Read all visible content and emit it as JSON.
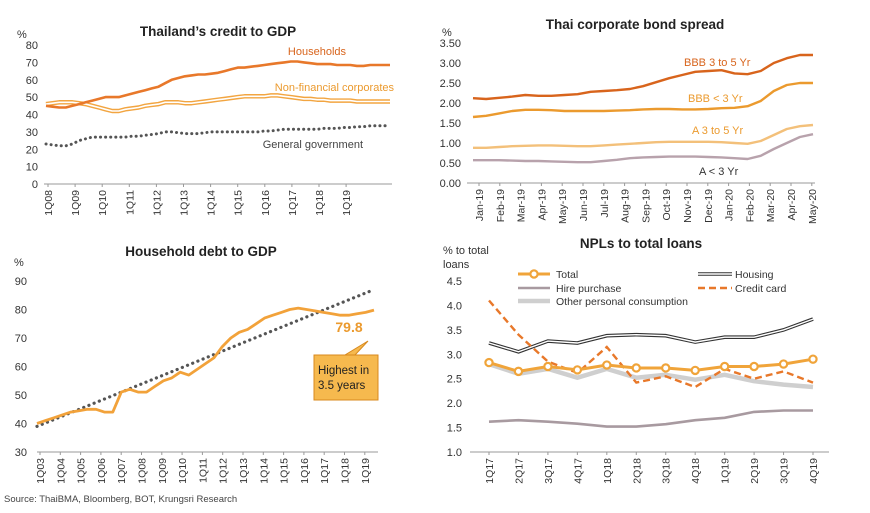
{
  "source": "Source: ThaiBMA, Bloomberg, BOT, Krungsri Research",
  "chart_data": [
    {
      "type": "line",
      "title": "Thailand’s credit to GDP",
      "unit": "%",
      "x_ticks": [
        "1Q08",
        "1Q09",
        "1Q10",
        "1Q11",
        "1Q12",
        "1Q13",
        "1Q14",
        "1Q15",
        "1Q16",
        "1Q17",
        "1Q18",
        "1Q19"
      ],
      "ylim": [
        0,
        80
      ],
      "y_ticks": [
        "0",
        "10",
        "20",
        "30",
        "40",
        "50",
        "60",
        "70",
        "80"
      ],
      "series": [
        {
          "name": "Households",
          "color": "#e8782a",
          "style": "solid",
          "values": [
            45,
            44.5,
            44,
            44,
            45,
            46,
            47,
            48,
            49,
            50,
            50,
            50,
            51,
            52,
            53,
            54,
            55,
            56,
            58,
            60,
            61,
            62,
            62.5,
            63,
            63,
            63.5,
            64,
            65,
            66,
            67,
            67,
            67.5,
            68,
            68.5,
            69,
            69.5,
            70,
            70.5,
            70.5,
            70,
            69.5,
            69,
            69,
            69,
            68.5,
            68.5,
            68.5,
            68,
            68,
            68.5,
            68.5,
            68.5,
            68.5
          ]
        },
        {
          "name": "Non-financial corporates",
          "color": "#f2a541",
          "style": "double",
          "values": [
            46,
            46.5,
            47,
            47,
            47,
            46.5,
            46,
            45,
            44,
            43,
            42,
            42,
            43,
            43.5,
            44,
            45,
            45.5,
            46,
            47,
            47,
            47,
            46.5,
            46.5,
            47,
            47.5,
            48,
            48.5,
            49,
            49.5,
            50,
            50.5,
            50.5,
            50.5,
            50.5,
            51,
            51,
            50.5,
            50,
            49.5,
            49,
            49,
            48.5,
            48.5,
            48,
            48,
            48,
            48,
            47.5,
            47.5,
            47.5,
            47.5,
            47.5,
            47.5
          ]
        },
        {
          "name": "General government",
          "color": "#555555",
          "style": "dotted",
          "values": [
            23,
            22.5,
            22,
            22,
            23,
            25,
            26,
            27,
            27,
            27,
            27,
            27,
            27,
            27.5,
            27.5,
            28,
            28.5,
            29,
            30,
            30,
            29.5,
            29,
            29,
            29,
            29.5,
            30,
            30,
            30,
            30,
            30,
            30,
            30,
            30,
            30.5,
            30.5,
            31,
            31.5,
            31.5,
            31.5,
            31.5,
            31.5,
            31.5,
            32,
            32,
            32,
            32.5,
            32.5,
            33,
            33,
            33.5,
            33.5,
            33.5,
            33.5
          ]
        }
      ]
    },
    {
      "type": "line",
      "title": "Thai corporate bond spread",
      "unit": "%",
      "x_ticks": [
        "Jan-19",
        "Feb-19",
        "Mar-19",
        "Apr-19",
        "May-19",
        "Jun-19",
        "Jul-19",
        "Aug-19",
        "Sep-19",
        "Oct-19",
        "Nov-19",
        "Dec-19",
        "Jan-20",
        "Feb-20",
        "Mar-20",
        "Apr-20",
        "May-20"
      ],
      "ylim": [
        0,
        3.5
      ],
      "y_ticks": [
        "0.00",
        "0.50",
        "1.00",
        "1.50",
        "2.00",
        "2.50",
        "3.00",
        "3.50"
      ],
      "series": [
        {
          "name": "BBB 3 to 5 Yr",
          "color": "#d8641c",
          "values": [
            2.12,
            2.1,
            2.13,
            2.16,
            2.2,
            2.18,
            2.18,
            2.2,
            2.22,
            2.28,
            2.3,
            2.32,
            2.35,
            2.42,
            2.52,
            2.62,
            2.7,
            2.78,
            2.8,
            2.82,
            2.74,
            2.72,
            2.8,
            3.0,
            3.12,
            3.2,
            3.2
          ]
        },
        {
          "name": "BBB < 3 Yr",
          "color": "#eb9a2e",
          "values": [
            1.65,
            1.68,
            1.74,
            1.8,
            1.83,
            1.83,
            1.82,
            1.8,
            1.8,
            1.8,
            1.8,
            1.81,
            1.82,
            1.84,
            1.85,
            1.85,
            1.84,
            1.84,
            1.85,
            1.87,
            1.88,
            1.92,
            2.05,
            2.3,
            2.45,
            2.5,
            2.5
          ]
        },
        {
          "name": "A 3 to 5 Yr",
          "color": "#f3c07a",
          "values": [
            0.88,
            0.88,
            0.9,
            0.92,
            0.93,
            0.94,
            0.94,
            0.93,
            0.92,
            0.92,
            0.94,
            0.96,
            0.98,
            1.0,
            1.02,
            1.03,
            1.03,
            1.03,
            1.03,
            1.02,
            1.0,
            0.98,
            1.05,
            1.2,
            1.35,
            1.42,
            1.45
          ]
        },
        {
          "name": "A < 3 Yr",
          "color": "#b8a2ac",
          "values": [
            0.57,
            0.57,
            0.57,
            0.56,
            0.55,
            0.55,
            0.54,
            0.53,
            0.52,
            0.52,
            0.55,
            0.58,
            0.62,
            0.64,
            0.65,
            0.66,
            0.66,
            0.66,
            0.65,
            0.64,
            0.62,
            0.6,
            0.68,
            0.85,
            1.0,
            1.15,
            1.22
          ]
        }
      ]
    },
    {
      "type": "line",
      "title": "Household debt to GDP",
      "unit": "%",
      "x_ticks": [
        "1Q03",
        "1Q04",
        "1Q05",
        "1Q06",
        "1Q07",
        "1Q08",
        "1Q09",
        "1Q10",
        "1Q11",
        "1Q12",
        "1Q13",
        "1Q14",
        "1Q15",
        "1Q16",
        "1Q17",
        "1Q18",
        "1Q19"
      ],
      "ylim": [
        30,
        90
      ],
      "y_ticks": [
        "30",
        "40",
        "50",
        "60",
        "70",
        "80",
        "90"
      ],
      "annotation": {
        "value_label": "79.8",
        "callout": "Highest in 3.5 years"
      },
      "series": [
        {
          "name": "",
          "color": "#f2a23a",
          "style": "solid",
          "values": [
            40,
            41,
            42,
            43,
            44,
            44.5,
            45,
            45,
            44,
            44,
            51,
            52,
            51,
            51,
            53,
            55,
            56,
            58,
            57,
            59,
            61,
            63,
            67,
            70,
            72,
            73,
            75,
            77,
            78,
            79,
            80,
            80.5,
            80,
            79.5,
            79,
            78.5,
            78,
            78,
            78.5,
            79,
            79.8
          ]
        },
        {
          "name": "",
          "color": "#555555",
          "style": "dotted-trend",
          "values": [
            39,
            87
          ]
        }
      ]
    },
    {
      "type": "line",
      "title": "NPLs to total loans",
      "unit": "% to total loans",
      "x_ticks": [
        "1Q17",
        "2Q17",
        "3Q17",
        "4Q17",
        "1Q18",
        "2Q18",
        "3Q18",
        "4Q18",
        "1Q19",
        "2Q19",
        "3Q19",
        "4Q19"
      ],
      "ylim": [
        1.0,
        4.5
      ],
      "y_ticks": [
        "1.0",
        "1.5",
        "2.0",
        "2.5",
        "3.0",
        "3.5",
        "4.0",
        "4.5"
      ],
      "legend": [
        "Total",
        "Housing",
        "Hire purchase",
        "Credit card",
        "Other personal consumption"
      ],
      "series": [
        {
          "name": "Total",
          "color": "#f0a43a",
          "style": "marker",
          "values": [
            2.83,
            2.65,
            2.75,
            2.68,
            2.78,
            2.72,
            2.72,
            2.67,
            2.75,
            2.75,
            2.8,
            2.9
          ]
        },
        {
          "name": "Housing",
          "color": "#333333",
          "style": "double",
          "values": [
            3.23,
            3.05,
            3.27,
            3.23,
            3.38,
            3.4,
            3.38,
            3.25,
            3.35,
            3.35,
            3.5,
            3.72
          ]
        },
        {
          "name": "Hire purchase",
          "color": "#a89aa0",
          "style": "solid",
          "values": [
            1.62,
            1.65,
            1.62,
            1.58,
            1.52,
            1.52,
            1.57,
            1.65,
            1.7,
            1.82,
            1.85,
            1.85
          ]
        },
        {
          "name": "Credit card",
          "color": "#e8782a",
          "style": "dashed",
          "values": [
            4.1,
            3.4,
            2.85,
            2.62,
            3.15,
            2.42,
            2.55,
            2.33,
            2.7,
            2.5,
            2.65,
            2.42
          ]
        },
        {
          "name": "Other personal consumption",
          "color": "#cfcfcf",
          "style": "thick",
          "values": [
            2.8,
            2.6,
            2.7,
            2.52,
            2.7,
            2.52,
            2.58,
            2.48,
            2.58,
            2.45,
            2.38,
            2.33
          ]
        }
      ]
    }
  ]
}
